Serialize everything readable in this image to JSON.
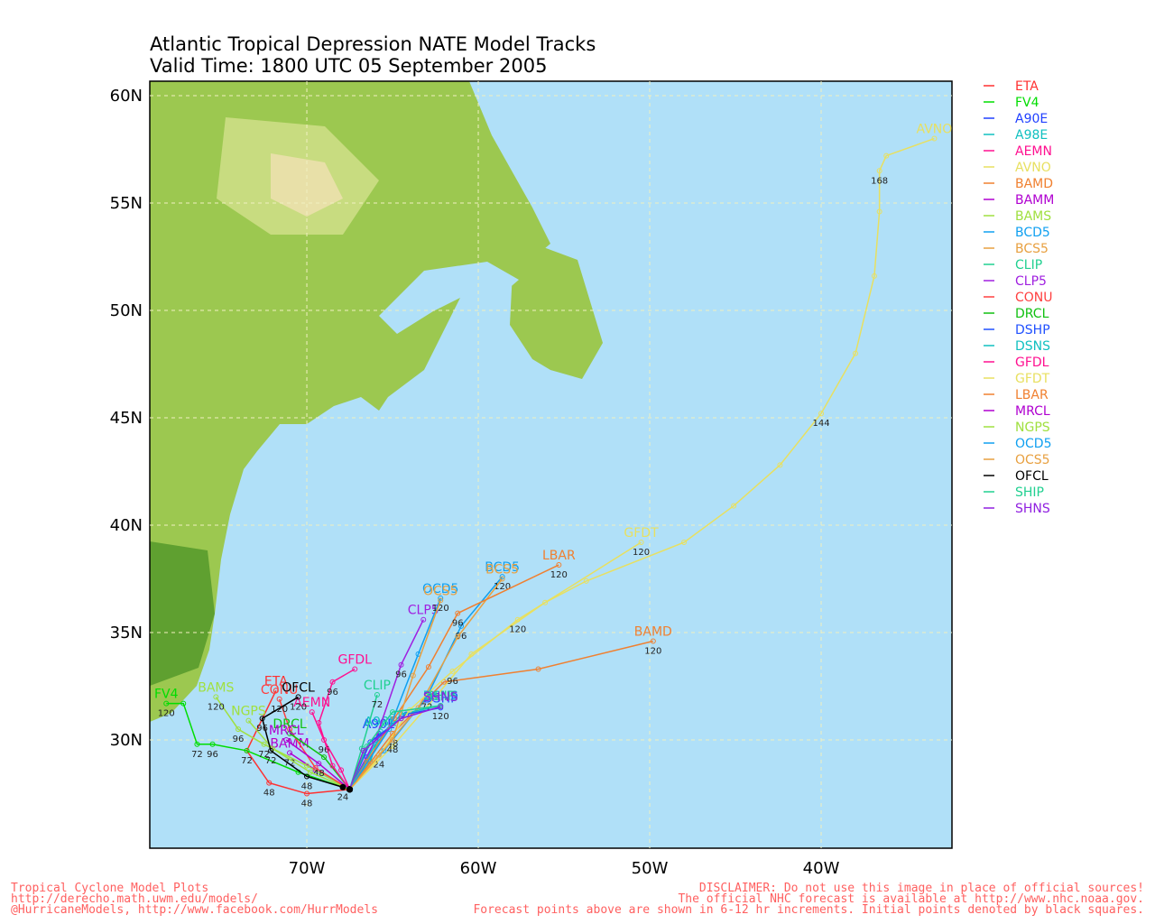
{
  "title": [
    "Atlantic Tropical Depression NATE Model Tracks",
    "Valid Time: 1800 UTC 05 September 2005"
  ],
  "map": {
    "lonlim": [
      -79.16,
      -32.37
    ],
    "latlim": [
      24.96,
      60.67
    ],
    "lat_ticks": [
      {
        "value": 30,
        "label": "30N"
      },
      {
        "value": 35,
        "label": "35N"
      },
      {
        "value": 40,
        "label": "40N"
      },
      {
        "value": 45,
        "label": "45N"
      },
      {
        "value": 50,
        "label": "50N"
      },
      {
        "value": 55,
        "label": "55N"
      },
      {
        "value": 60,
        "label": "60N"
      }
    ],
    "lon_ticks": [
      {
        "value": -70,
        "label": "70W"
      },
      {
        "value": -60,
        "label": "60W"
      },
      {
        "value": -50,
        "label": "50W"
      },
      {
        "value": -40,
        "label": "40W"
      }
    ]
  },
  "models": [
    {
      "name": "ETA",
      "color": "#ff3030",
      "lon": [
        -67.5,
        -70.0,
        -72.2,
        -73.5,
        -71.8
      ],
      "lat": [
        27.7,
        27.5,
        28.0,
        29.5,
        32.3
      ],
      "hours": [
        null,
        48,
        48,
        72,
        null
      ]
    },
    {
      "name": "FV4",
      "color": "#00dd00",
      "lon": [
        -67.5,
        -70.5,
        -73.5,
        -75.5,
        -76.4,
        -77.2,
        -78.2
      ],
      "lat": [
        27.7,
        28.5,
        29.5,
        29.8,
        29.8,
        31.7,
        31.7
      ],
      "hours": [
        null,
        null,
        null,
        96,
        72,
        null,
        120
      ]
    },
    {
      "name": "A90E",
      "color": "#2040ff",
      "lon": [
        -67.5,
        -66.5,
        -65.8
      ],
      "lat": [
        27.7,
        29.2,
        30.3
      ],
      "hours": [
        null,
        null,
        null
      ]
    },
    {
      "name": "A98E",
      "color": "#10c0c0",
      "lon": [
        -67.5,
        -66.3,
        -65.7
      ],
      "lat": [
        27.7,
        29.0,
        30.4
      ],
      "hours": [
        null,
        null,
        null
      ]
    },
    {
      "name": "AEMN",
      "color": "#ff1090",
      "lon": [
        -67.5,
        -68.0,
        -69.0,
        -69.7
      ],
      "lat": [
        27.7,
        28.6,
        30.0,
        31.3
      ],
      "hours": [
        null,
        null,
        96,
        null
      ]
    },
    {
      "name": "AVNO",
      "color": "#e8e060",
      "lon": [
        -67.5,
        -65.0,
        -62.5,
        -60.4,
        -56.1,
        -53.7,
        -48.0,
        -45.1,
        -42.4,
        -40.0,
        -38.0,
        -36.9,
        -36.6,
        -36.6,
        -36.2,
        -33.4
      ],
      "lat": [
        27.7,
        29.7,
        32.0,
        34.0,
        36.4,
        37.4,
        39.2,
        40.9,
        42.8,
        45.2,
        48.0,
        51.6,
        54.6,
        56.5,
        57.2,
        58.0
      ],
      "hours": [
        null,
        null,
        null,
        null,
        null,
        null,
        null,
        null,
        null,
        144,
        null,
        null,
        null,
        168,
        null,
        null
      ]
    },
    {
      "name": "BAMD",
      "color": "#f08030",
      "lon": [
        -67.5,
        -65.0,
        -62.0,
        -56.5,
        -49.8
      ],
      "lat": [
        27.7,
        30.3,
        32.7,
        33.3,
        34.6
      ],
      "hours": [
        null,
        48,
        null,
        null,
        120
      ]
    },
    {
      "name": "BAMM",
      "color": "#b000d0",
      "lon": [
        -67.5,
        -69.5,
        -71.0
      ],
      "lat": [
        27.7,
        28.6,
        29.4
      ],
      "hours": [
        null,
        null,
        72
      ]
    },
    {
      "name": "BAMS",
      "color": "#a0e040",
      "lon": [
        -67.5,
        -70.0,
        -72.5,
        -74.0,
        -75.3
      ],
      "lat": [
        27.7,
        28.8,
        29.8,
        30.5,
        32.0
      ],
      "hours": [
        null,
        null,
        72,
        96,
        120
      ]
    },
    {
      "name": "BCD5",
      "color": "#10a0f0",
      "lon": [
        -67.5,
        -65.5,
        -63.0,
        -61.0,
        -58.6
      ],
      "lat": [
        27.7,
        29.5,
        32.0,
        35.3,
        37.6
      ],
      "hours": [
        null,
        null,
        72,
        96,
        120
      ]
    },
    {
      "name": "BCS5",
      "color": "#e8a040",
      "lon": [
        -67.5,
        -65.8,
        -63.5,
        -61.2,
        -58.6
      ],
      "lat": [
        27.7,
        29.3,
        31.5,
        34.8,
        37.5
      ],
      "hours": [
        null,
        24,
        null,
        null,
        null
      ]
    },
    {
      "name": "CLIP",
      "color": "#20d090",
      "lon": [
        -67.5,
        -66.8,
        -65.9
      ],
      "lat": [
        27.7,
        29.6,
        32.1
      ],
      "hours": [
        null,
        null,
        72
      ]
    },
    {
      "name": "CLP5",
      "color": "#a020e0",
      "lon": [
        -67.5,
        -66.0,
        -64.5,
        -63.2
      ],
      "lat": [
        27.7,
        30.0,
        33.5,
        35.6
      ],
      "hours": [
        null,
        null,
        96,
        null
      ]
    },
    {
      "name": "CONU",
      "color": "#ff4040",
      "lon": [
        -67.5,
        -69.5,
        -71.0,
        -71.6
      ],
      "lat": [
        27.7,
        28.7,
        30.5,
        31.9
      ],
      "hours": [
        null,
        null,
        null,
        120
      ]
    },
    {
      "name": "DRCL",
      "color": "#10c010",
      "lon": [
        -67.5,
        -69.0,
        -71.0
      ],
      "lat": [
        27.7,
        29.2,
        30.3
      ],
      "hours": [
        null,
        null,
        null
      ]
    },
    {
      "name": "DSHP",
      "color": "#2050ff",
      "lon": [
        -67.5,
        -66.3,
        -64.2,
        -62.2
      ],
      "lat": [
        27.7,
        29.9,
        31.2,
        31.5
      ],
      "hours": [
        null,
        null,
        null,
        null
      ]
    },
    {
      "name": "DSNS",
      "color": "#10c0c0",
      "lon": [
        -67.5,
        -66.0,
        -64.5,
        -62.2
      ],
      "lat": [
        27.7,
        29.8,
        31.2,
        31.6
      ],
      "hours": [
        null,
        null,
        null,
        null
      ]
    },
    {
      "name": "GFDL",
      "color": "#ff1090",
      "lon": [
        -67.5,
        -68.5,
        -69.3,
        -68.5,
        -67.2
      ],
      "lat": [
        27.7,
        28.8,
        30.8,
        32.7,
        33.3
      ],
      "hours": [
        null,
        null,
        null,
        96,
        null
      ]
    },
    {
      "name": "GFDT",
      "color": "#e8e060",
      "lon": [
        -67.5,
        -66.0,
        -64.0,
        -61.5,
        -57.7,
        -50.5
      ],
      "lat": [
        27.7,
        29.0,
        31.4,
        33.2,
        35.6,
        39.2
      ],
      "hours": [
        null,
        null,
        null,
        96,
        120,
        120
      ]
    },
    {
      "name": "LBAR",
      "color": "#f08030",
      "lon": [
        -67.5,
        -66.5,
        -64.9,
        -62.9,
        -61.2,
        -55.3
      ],
      "lat": [
        27.7,
        29.0,
        31.0,
        33.4,
        35.9,
        38.15
      ],
      "hours": [
        null,
        null,
        null,
        null,
        96,
        120
      ]
    },
    {
      "name": "MRCL",
      "color": "#b000d0",
      "lon": [
        -67.5,
        -69.3,
        -71.2
      ],
      "lat": [
        27.7,
        28.9,
        30.0
      ],
      "hours": [
        null,
        48,
        null
      ]
    },
    {
      "name": "NGPS",
      "color": "#a0e040",
      "lon": [
        -67.5,
        -69.8,
        -72.0,
        -73.4
      ],
      "lat": [
        27.7,
        28.5,
        29.6,
        30.9
      ],
      "hours": [
        null,
        null,
        null,
        null
      ]
    },
    {
      "name": "OCD5",
      "color": "#10a0f0",
      "lon": [
        -67.5,
        -65.2,
        -63.5,
        -62.2
      ],
      "lat": [
        27.7,
        30.5,
        34.0,
        36.6
      ],
      "hours": [
        null,
        null,
        null,
        120
      ]
    },
    {
      "name": "OCS5",
      "color": "#e8a040",
      "lon": [
        -67.5,
        -65.0,
        -63.8,
        -62.2
      ],
      "lat": [
        27.7,
        30.0,
        33.0,
        36.5
      ],
      "hours": [
        null,
        48,
        null,
        null
      ]
    },
    {
      "name": "OFCL",
      "color": "#000000",
      "lon": [
        -67.9,
        -70.0,
        -72.1,
        -72.6,
        -70.5
      ],
      "lat": [
        27.8,
        28.3,
        29.5,
        31.0,
        32.0
      ],
      "hours": [
        24,
        48,
        72,
        96,
        120
      ]
    },
    {
      "name": "SHIP",
      "color": "#20d090",
      "lon": [
        -67.5,
        -66.5,
        -65.0,
        -62.2
      ],
      "lat": [
        27.7,
        29.7,
        31.3,
        31.6
      ],
      "hours": [
        null,
        null,
        null,
        null
      ]
    },
    {
      "name": "SHNS",
      "color": "#9020e0",
      "lon": [
        -67.5,
        -66.7,
        -64.5,
        -62.2
      ],
      "lat": [
        27.7,
        29.5,
        31.0,
        31.55
      ],
      "hours": [
        null,
        null,
        null,
        120
      ]
    }
  ],
  "footer_left": [
    "Tropical Cyclone Model Plots",
    "http://derecho.math.uwm.edu/models/",
    "@HurricaneModels, http://www.facebook.com/HurrModels"
  ],
  "footer_right": [
    "DISCLAIMER: Do not use this image in place of official sources!",
    "The official NHC forecast is available at http://www.nhc.noaa.gov.",
    "Forecast points above are shown in 6-12 hr increments. Initial points denoted by black squares."
  ]
}
